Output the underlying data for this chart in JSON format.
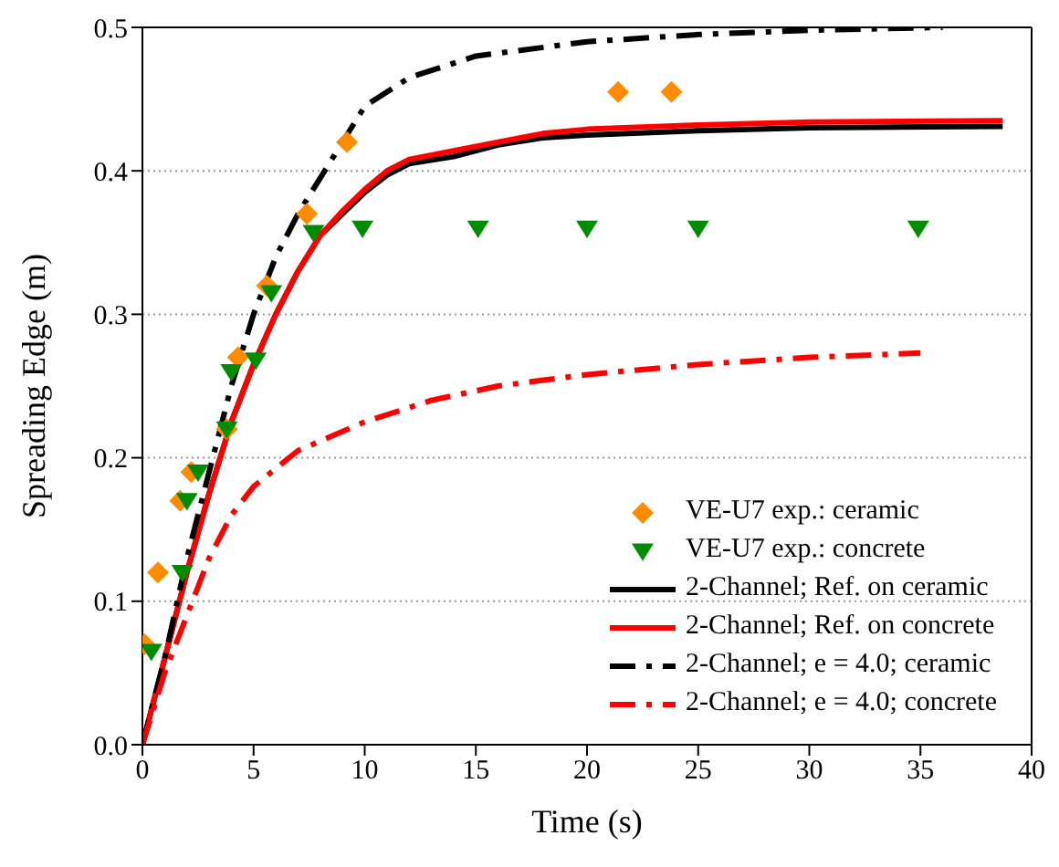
{
  "chart_data": {
    "type": "line",
    "xlabel": "Time (s)",
    "ylabel": "Spreading Edge (m)",
    "xlim": [
      0,
      40
    ],
    "xticks": [
      0,
      5,
      10,
      15,
      20,
      25,
      30,
      35,
      40
    ],
    "ylim": [
      0,
      0.5
    ],
    "yticks": [
      {
        "value": 0,
        "label": "0.0"
      },
      0.1,
      0.2,
      0.3,
      0.4,
      0.5
    ],
    "grid": "y",
    "legend": "bottom right",
    "series": [
      {
        "name": "VE-U7 exp.: ceramic",
        "type": "scatter",
        "marker": "diamond",
        "color": "#ff8c00",
        "x": [
          0.1,
          0.7,
          1.7,
          2.2,
          3.8,
          4.3,
          5.6,
          7.4,
          9.2,
          21.4,
          23.8
        ],
        "values": [
          0.07,
          0.12,
          0.17,
          0.19,
          0.22,
          0.27,
          0.32,
          0.37,
          0.42,
          0.455,
          0.455
        ]
      },
      {
        "name": "VE-U7 exp.: concrete",
        "type": "scatter",
        "marker": "triangle",
        "color": "#008c00",
        "x": [
          0.4,
          1.8,
          2.0,
          2.5,
          3.8,
          4.0,
          5.1,
          5.8,
          7.7,
          9.9,
          15.1,
          20.0,
          25.0,
          34.9
        ],
        "values": [
          0.065,
          0.12,
          0.17,
          0.19,
          0.22,
          0.26,
          0.268,
          0.315,
          0.357,
          0.36,
          0.36,
          0.36,
          0.36,
          0.36
        ]
      },
      {
        "name": "2-Channel; Ref. on ceramic",
        "marker": "none",
        "line_style": "solid",
        "color": "#000000",
        "x": [
          0,
          1,
          2,
          3,
          4,
          5,
          6,
          7,
          8,
          9,
          10,
          11,
          12,
          14,
          16,
          18,
          20,
          25,
          30,
          38.7
        ],
        "values": [
          0,
          0.06,
          0.12,
          0.175,
          0.225,
          0.265,
          0.3,
          0.33,
          0.355,
          0.37,
          0.385,
          0.397,
          0.405,
          0.41,
          0.418,
          0.423,
          0.425,
          0.428,
          0.43,
          0.431
        ]
      },
      {
        "name": "2-Channel; Ref. on concrete",
        "marker": "none",
        "line_style": "solid",
        "color": "#ff0000",
        "x": [
          0,
          1,
          2,
          3,
          4,
          5,
          6,
          7,
          8,
          9,
          10,
          11,
          12,
          14,
          16,
          18,
          20,
          25,
          30,
          38.7
        ],
        "values": [
          0,
          0.06,
          0.12,
          0.175,
          0.225,
          0.265,
          0.3,
          0.33,
          0.355,
          0.372,
          0.387,
          0.4,
          0.408,
          0.414,
          0.42,
          0.426,
          0.429,
          0.432,
          0.434,
          0.435
        ]
      },
      {
        "name": "2-Channel; e = 4.0; ceramic",
        "marker": "none",
        "line_style": "dashed",
        "color": "#000000",
        "x": [
          0,
          1,
          2,
          3,
          4,
          5,
          6,
          7,
          8,
          9,
          10,
          12,
          15,
          20,
          25,
          30,
          36
        ],
        "values": [
          0,
          0.06,
          0.13,
          0.19,
          0.25,
          0.3,
          0.34,
          0.37,
          0.395,
          0.42,
          0.445,
          0.465,
          0.48,
          0.49,
          0.495,
          0.498,
          0.5
        ]
      },
      {
        "name": "2-Channel; e = 4.0; concrete",
        "marker": "none",
        "line_style": "dashed",
        "color": "#ff0000",
        "x": [
          0,
          1,
          2,
          3,
          4,
          5,
          7,
          10,
          13,
          16,
          20,
          25,
          30,
          35
        ],
        "values": [
          0,
          0.05,
          0.09,
          0.13,
          0.16,
          0.18,
          0.205,
          0.225,
          0.24,
          0.25,
          0.258,
          0.265,
          0.27,
          0.273
        ]
      }
    ]
  }
}
